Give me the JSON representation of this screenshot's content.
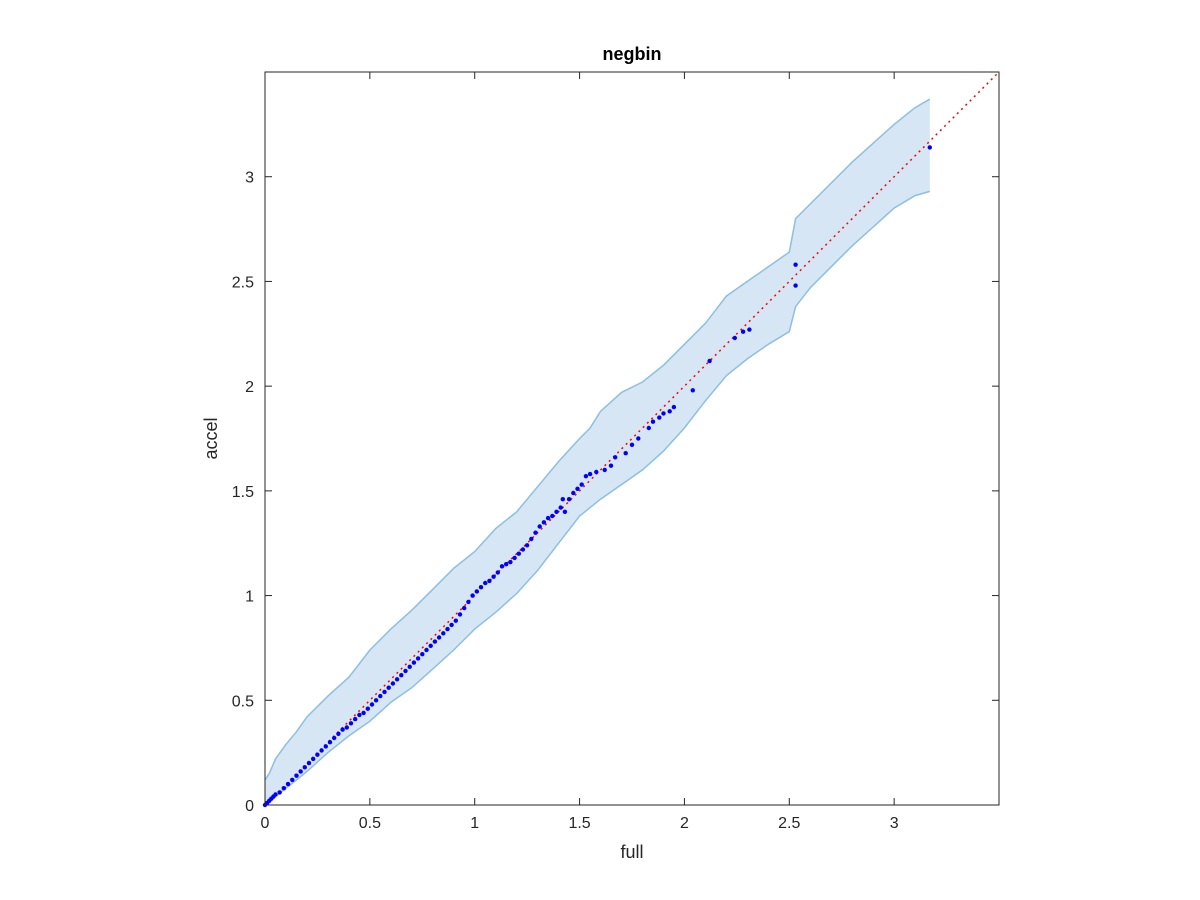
{
  "chart_data": {
    "type": "scatter",
    "title": "negbin",
    "xlabel": "full",
    "ylabel": "accel",
    "xlim": [
      0,
      3.5
    ],
    "ylim": [
      0,
      3.5
    ],
    "xticks": [
      "0",
      "0.5",
      "1",
      "1.5",
      "2",
      "2.5",
      "3"
    ],
    "yticks": [
      "0",
      "0.5",
      "1",
      "1.5",
      "2",
      "2.5",
      "3"
    ],
    "grid": false,
    "colors": {
      "points": "#0000ff",
      "reference_line": "#ff0000",
      "band_fill": "#d6e6f4",
      "band_edge": "#8cbfe0",
      "axes": "#262626"
    },
    "reference_line": {
      "from": [
        0,
        0
      ],
      "to": [
        3.5,
        3.5
      ],
      "style": "dotted"
    },
    "band": {
      "x": [
        0.0,
        0.02,
        0.05,
        0.1,
        0.15,
        0.2,
        0.3,
        0.4,
        0.5,
        0.6,
        0.7,
        0.8,
        0.9,
        1.0,
        1.1,
        1.2,
        1.3,
        1.4,
        1.5,
        1.55,
        1.6,
        1.7,
        1.8,
        1.9,
        2.0,
        2.1,
        2.2,
        2.3,
        2.4,
        2.5,
        2.53,
        2.6,
        2.7,
        2.8,
        2.9,
        3.0,
        3.1,
        3.17
      ],
      "upper": [
        0.12,
        0.15,
        0.22,
        0.29,
        0.35,
        0.42,
        0.52,
        0.61,
        0.74,
        0.84,
        0.93,
        1.03,
        1.13,
        1.21,
        1.32,
        1.4,
        1.52,
        1.64,
        1.75,
        1.8,
        1.88,
        1.97,
        2.02,
        2.1,
        2.2,
        2.3,
        2.43,
        2.5,
        2.57,
        2.64,
        2.8,
        2.87,
        2.97,
        3.07,
        3.16,
        3.25,
        3.33,
        3.37
      ],
      "lower": [
        0.0,
        0.01,
        0.04,
        0.08,
        0.12,
        0.16,
        0.25,
        0.33,
        0.4,
        0.49,
        0.56,
        0.65,
        0.74,
        0.84,
        0.92,
        1.01,
        1.12,
        1.25,
        1.38,
        1.42,
        1.46,
        1.53,
        1.6,
        1.69,
        1.8,
        1.93,
        2.05,
        2.13,
        2.2,
        2.26,
        2.38,
        2.47,
        2.57,
        2.67,
        2.76,
        2.85,
        2.91,
        2.93
      ]
    },
    "points": {
      "x": [
        0.0,
        0.01,
        0.02,
        0.03,
        0.04,
        0.05,
        0.07,
        0.09,
        0.11,
        0.13,
        0.15,
        0.17,
        0.19,
        0.21,
        0.23,
        0.25,
        0.27,
        0.29,
        0.31,
        0.33,
        0.35,
        0.37,
        0.39,
        0.41,
        0.43,
        0.45,
        0.47,
        0.49,
        0.51,
        0.53,
        0.55,
        0.57,
        0.59,
        0.61,
        0.63,
        0.65,
        0.67,
        0.69,
        0.71,
        0.73,
        0.75,
        0.77,
        0.79,
        0.81,
        0.83,
        0.85,
        0.87,
        0.89,
        0.91,
        0.93,
        0.95,
        0.97,
        0.99,
        1.01,
        1.03,
        1.05,
        1.07,
        1.09,
        1.11,
        1.13,
        1.15,
        1.17,
        1.19,
        1.21,
        1.23,
        1.25,
        1.27,
        1.29,
        1.31,
        1.33,
        1.35,
        1.37,
        1.39,
        1.41,
        1.42,
        1.43,
        1.45,
        1.47,
        1.49,
        1.51,
        1.53,
        1.55,
        1.58,
        1.62,
        1.65,
        1.67,
        1.72,
        1.75,
        1.78,
        1.83,
        1.85,
        1.88,
        1.9,
        1.93,
        1.95,
        2.04,
        2.12,
        2.24,
        2.28,
        2.31,
        2.53,
        2.53,
        3.17
      ],
      "y": [
        0.0,
        0.01,
        0.02,
        0.03,
        0.04,
        0.05,
        0.06,
        0.08,
        0.1,
        0.12,
        0.14,
        0.16,
        0.18,
        0.2,
        0.22,
        0.24,
        0.26,
        0.28,
        0.3,
        0.32,
        0.34,
        0.36,
        0.37,
        0.39,
        0.41,
        0.43,
        0.44,
        0.46,
        0.48,
        0.5,
        0.52,
        0.54,
        0.56,
        0.58,
        0.6,
        0.62,
        0.64,
        0.66,
        0.68,
        0.7,
        0.72,
        0.74,
        0.76,
        0.78,
        0.8,
        0.82,
        0.84,
        0.86,
        0.88,
        0.91,
        0.94,
        0.97,
        1.0,
        1.02,
        1.04,
        1.06,
        1.07,
        1.09,
        1.11,
        1.14,
        1.15,
        1.16,
        1.18,
        1.2,
        1.22,
        1.24,
        1.27,
        1.3,
        1.33,
        1.35,
        1.37,
        1.38,
        1.4,
        1.42,
        1.46,
        1.4,
        1.46,
        1.49,
        1.51,
        1.53,
        1.57,
        1.58,
        1.59,
        1.6,
        1.62,
        1.66,
        1.68,
        1.72,
        1.75,
        1.8,
        1.83,
        1.85,
        1.87,
        1.88,
        1.9,
        1.98,
        2.12,
        2.23,
        2.26,
        2.27,
        2.48,
        2.58,
        3.14
      ]
    }
  }
}
